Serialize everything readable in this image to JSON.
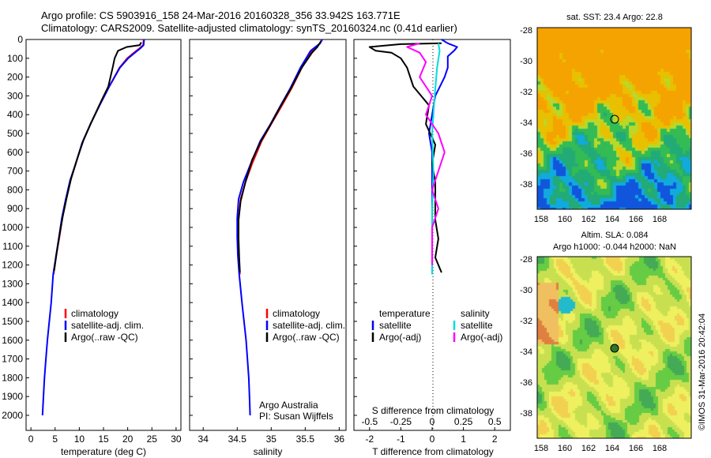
{
  "header": {
    "line1": "Argo profile: CS 5903916_158 24-Mar-2016 20160328_356 33.942S 163.771E",
    "line2": "Climatology: CARS2009. Satellite-adjusted climatology: synTS_20160324.nc (0.41d earlier)"
  },
  "colors": {
    "climatology": "#ff0000",
    "satellite": "#0000ff",
    "argo": "#000000",
    "sal_sat": "#00dddd",
    "sal_argo": "#ff00ff"
  },
  "chart_data": [
    {
      "type": "line",
      "id": "temperature",
      "xlabel": "temperature (deg C)",
      "ylabel": "",
      "xlim": [
        -1,
        31
      ],
      "ylim": [
        2080,
        0
      ],
      "xticks": [
        0,
        5,
        10,
        15,
        20,
        25,
        30
      ],
      "yticks": [
        0,
        100,
        200,
        300,
        400,
        500,
        600,
        700,
        800,
        900,
        1000,
        1100,
        1200,
        1300,
        1400,
        1500,
        1600,
        1700,
        1800,
        1900,
        2000
      ],
      "legend": [
        "climatology",
        "satellite-adj. clim.",
        "Argo(..raw -QC)"
      ],
      "series": [
        {
          "name": "climatology",
          "color": "#ff0000",
          "points": [
            [
              23.3,
              0
            ],
            [
              23.2,
              30
            ],
            [
              22.3,
              50
            ],
            [
              21.3,
              70
            ],
            [
              19.9,
              100
            ],
            [
              18.3,
              150
            ],
            [
              16.2,
              250
            ],
            [
              14.2,
              350
            ],
            [
              12.3,
              450
            ],
            [
              10.6,
              550
            ],
            [
              9.4,
              650
            ],
            [
              8.2,
              750
            ],
            [
              7.3,
              850
            ],
            [
              6.5,
              950
            ],
            [
              5.9,
              1050
            ],
            [
              5.2,
              1150
            ],
            [
              4.7,
              1250
            ]
          ]
        },
        {
          "name": "satellite-adj. clim.",
          "color": "#0000ff",
          "points": [
            [
              23.4,
              0
            ],
            [
              23.3,
              30
            ],
            [
              22.5,
              50
            ],
            [
              21.5,
              70
            ],
            [
              20.1,
              100
            ],
            [
              18.4,
              150
            ],
            [
              16.2,
              250
            ],
            [
              14.2,
              350
            ],
            [
              12.3,
              450
            ],
            [
              10.6,
              550
            ],
            [
              9.4,
              650
            ],
            [
              8.1,
              750
            ],
            [
              7.2,
              850
            ],
            [
              6.4,
              950
            ],
            [
              5.8,
              1050
            ],
            [
              5.2,
              1150
            ],
            [
              4.6,
              1250
            ],
            [
              4.2,
              1400
            ],
            [
              3.8,
              1500
            ],
            [
              3.4,
              1600
            ],
            [
              3.1,
              1700
            ],
            [
              2.8,
              1800
            ],
            [
              2.6,
              1900
            ],
            [
              2.4,
              2000
            ]
          ]
        },
        {
          "name": "Argo(..raw -QC)",
          "color": "#000000",
          "points": [
            [
              22.8,
              15
            ],
            [
              22.5,
              30
            ],
            [
              19.8,
              40
            ],
            [
              18.0,
              60
            ],
            [
              17.3,
              100
            ],
            [
              16.9,
              150
            ],
            [
              16.0,
              250
            ],
            [
              14.5,
              330
            ],
            [
              12.5,
              440
            ],
            [
              10.8,
              540
            ],
            [
              9.5,
              640
            ],
            [
              8.3,
              740
            ],
            [
              7.4,
              840
            ],
            [
              6.6,
              940
            ],
            [
              5.9,
              1040
            ],
            [
              5.3,
              1140
            ],
            [
              4.8,
              1230
            ]
          ]
        }
      ]
    },
    {
      "type": "line",
      "id": "salinity",
      "xlabel": "salinity",
      "ylabel": "",
      "xlim": [
        33.8,
        36.1
      ],
      "ylim": [
        2080,
        0
      ],
      "xticks": [
        34,
        34.5,
        35,
        35.5,
        36
      ],
      "legend": [
        "climatology",
        "satellite-adj. clim.",
        "Argo(..raw -QC)"
      ],
      "series": [
        {
          "name": "climatology",
          "color": "#ff0000",
          "points": [
            [
              35.74,
              0
            ],
            [
              35.72,
              20
            ],
            [
              35.6,
              60
            ],
            [
              35.45,
              150
            ],
            [
              35.3,
              260
            ],
            [
              35.16,
              350
            ],
            [
              35.0,
              450
            ],
            [
              34.86,
              540
            ],
            [
              34.72,
              660
            ],
            [
              34.62,
              760
            ],
            [
              34.55,
              850
            ],
            [
              34.52,
              950
            ],
            [
              34.51,
              1050
            ],
            [
              34.52,
              1150
            ],
            [
              34.54,
              1250
            ]
          ]
        },
        {
          "name": "satellite-adj. clim.",
          "color": "#0000ff",
          "points": [
            [
              35.75,
              0
            ],
            [
              35.72,
              20
            ],
            [
              35.58,
              60
            ],
            [
              35.43,
              150
            ],
            [
              35.28,
              260
            ],
            [
              35.14,
              350
            ],
            [
              34.99,
              450
            ],
            [
              34.84,
              540
            ],
            [
              34.7,
              660
            ],
            [
              34.59,
              760
            ],
            [
              34.52,
              850
            ],
            [
              34.5,
              950
            ],
            [
              34.5,
              1050
            ],
            [
              34.51,
              1150
            ],
            [
              34.53,
              1250
            ],
            [
              34.57,
              1400
            ],
            [
              34.6,
              1500
            ],
            [
              34.63,
              1600
            ],
            [
              34.65,
              1700
            ],
            [
              34.67,
              1800
            ],
            [
              34.68,
              1900
            ],
            [
              34.69,
              2000
            ]
          ]
        },
        {
          "name": "Argo(..raw -QC)",
          "color": "#000000",
          "points": [
            [
              35.73,
              10
            ],
            [
              35.68,
              40
            ],
            [
              35.6,
              70
            ],
            [
              35.45,
              150
            ],
            [
              35.29,
              260
            ],
            [
              35.13,
              360
            ],
            [
              34.98,
              460
            ],
            [
              34.85,
              540
            ],
            [
              34.72,
              640
            ],
            [
              34.62,
              760
            ],
            [
              34.55,
              860
            ],
            [
              34.52,
              960
            ],
            [
              34.52,
              1060
            ],
            [
              34.53,
              1160
            ],
            [
              34.54,
              1240
            ]
          ]
        }
      ]
    },
    {
      "type": "line",
      "id": "difference",
      "xlabel": "T difference from climatology",
      "xlabel2": "S difference from climatology",
      "xlim": [
        -2.5,
        2.5
      ],
      "ylim": [
        2080,
        0
      ],
      "xticks": [
        -2,
        -1,
        0,
        1,
        2
      ],
      "xticks2": [
        -0.5,
        -0.25,
        0,
        0.25,
        0.5
      ],
      "legend": {
        "temperature_title": "temperature",
        "salinity_title": "salinity",
        "t_sat": "satellite",
        "t_argo": "Argo(-adj)",
        "s_sat": "satellite",
        "s_argo": "Argo(-adj)"
      },
      "series": [
        {
          "name": "temperature satellite",
          "color": "#0000ff",
          "points": [
            [
              0.3,
              0
            ],
            [
              0.5,
              20
            ],
            [
              0.8,
              40
            ],
            [
              0.7,
              60
            ],
            [
              0.5,
              90
            ],
            [
              0.5,
              150
            ],
            [
              0.4,
              200
            ],
            [
              0.1,
              300
            ],
            [
              0.0,
              400
            ],
            [
              -0.1,
              500
            ],
            [
              0.0,
              600
            ],
            [
              0.0,
              700
            ],
            [
              0.0,
              800
            ],
            [
              0.0,
              900
            ],
            [
              0.0,
              1000
            ],
            [
              0.0,
              1100
            ],
            [
              0.0,
              1200
            ]
          ]
        },
        {
          "name": "temperature Argo(-adj)",
          "color": "#000000",
          "points": [
            [
              0.3,
              20
            ],
            [
              -1.0,
              25
            ],
            [
              -2.0,
              40
            ],
            [
              -1.8,
              60
            ],
            [
              -1.3,
              70
            ],
            [
              -1.0,
              100
            ],
            [
              -0.8,
              150
            ],
            [
              -0.6,
              250
            ],
            [
              -0.1,
              350
            ],
            [
              -0.2,
              450
            ],
            [
              0.1,
              560
            ],
            [
              0.0,
              660
            ],
            [
              0.1,
              760
            ],
            [
              0.1,
              860
            ],
            [
              0.1,
              960
            ],
            [
              0.2,
              1060
            ],
            [
              0.1,
              1160
            ],
            [
              0.3,
              1240
            ]
          ]
        },
        {
          "name": "salinity satellite",
          "color": "#00dddd",
          "points": [
            [
              0.05,
              20
            ],
            [
              0.06,
              60
            ],
            [
              0.04,
              150
            ],
            [
              0.02,
              300
            ],
            [
              0.0,
              500
            ],
            [
              0.01,
              700
            ],
            [
              0.0,
              900
            ],
            [
              0.0,
              1100
            ],
            [
              0.0,
              1250
            ]
          ]
        },
        {
          "name": "salinity Argo(-adj)",
          "color": "#ff00ff",
          "points": [
            [
              -0.1,
              20
            ],
            [
              -0.2,
              40
            ],
            [
              -0.1,
              70
            ],
            [
              -0.05,
              120
            ],
            [
              -0.1,
              200
            ],
            [
              0.0,
              300
            ],
            [
              -0.05,
              400
            ],
            [
              0.05,
              500
            ],
            [
              0.1,
              600
            ],
            [
              0.05,
              700
            ],
            [
              0.0,
              800
            ],
            [
              0.05,
              900
            ],
            [
              0.0,
              1000
            ],
            [
              0.0,
              1100
            ],
            [
              0.0,
              1200
            ]
          ]
        }
      ]
    }
  ],
  "annotations": {
    "argo_australia": "Argo Australia",
    "pi": "PI: Susan Wijffels"
  },
  "maps": {
    "sst": {
      "title": "sat. SST: 23.4  Argo: 22.8",
      "yticks": [
        "-28",
        "-30",
        "-32",
        "-34",
        "-36",
        "-38"
      ],
      "xticks": [
        "158",
        "160",
        "162",
        "164",
        "166",
        "168"
      ]
    },
    "sla": {
      "title_line1": "Altim. SLA: 0.084",
      "title_line2": "Argo h1000: -0.044 h2000: NaN",
      "yticks": [
        "-28",
        "-30",
        "-32",
        "-34",
        "-36",
        "-38"
      ],
      "xticks": [
        "158",
        "160",
        "162",
        "164",
        "166",
        "168"
      ]
    }
  },
  "credit": "©IMOS 31-Mar-2016 20:42:04"
}
